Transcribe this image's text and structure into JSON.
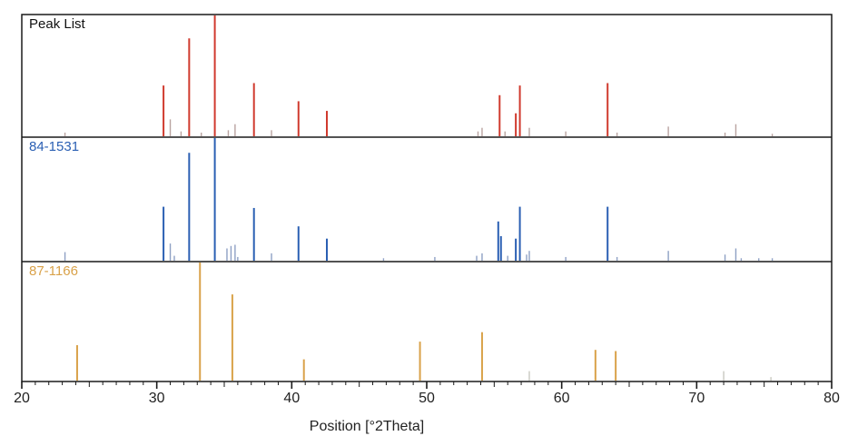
{
  "chart_data": {
    "type": "bar",
    "xlabel": "Position [°2Theta]",
    "xlim": [
      20,
      80
    ],
    "x_ticks": [
      20,
      30,
      40,
      50,
      60,
      70,
      80
    ],
    "ylim": [
      0,
      100
    ],
    "grid": false,
    "panels": [
      {
        "name": "Peak List",
        "color": "#d03a2e",
        "minor_color": "#b9a3a0",
        "peaks": [
          {
            "x": 23.2,
            "y": 3
          },
          {
            "x": 30.5,
            "y": 42
          },
          {
            "x": 31.0,
            "y": 14
          },
          {
            "x": 31.8,
            "y": 4
          },
          {
            "x": 32.4,
            "y": 81
          },
          {
            "x": 33.3,
            "y": 3
          },
          {
            "x": 34.3,
            "y": 100
          },
          {
            "x": 35.3,
            "y": 5
          },
          {
            "x": 35.8,
            "y": 10
          },
          {
            "x": 37.2,
            "y": 44
          },
          {
            "x": 38.5,
            "y": 5
          },
          {
            "x": 40.5,
            "y": 29
          },
          {
            "x": 42.6,
            "y": 21
          },
          {
            "x": 53.8,
            "y": 4
          },
          {
            "x": 54.1,
            "y": 7
          },
          {
            "x": 55.4,
            "y": 34
          },
          {
            "x": 55.8,
            "y": 4
          },
          {
            "x": 56.6,
            "y": 19
          },
          {
            "x": 56.9,
            "y": 42
          },
          {
            "x": 57.6,
            "y": 7
          },
          {
            "x": 60.3,
            "y": 4
          },
          {
            "x": 63.4,
            "y": 44
          },
          {
            "x": 64.1,
            "y": 3
          },
          {
            "x": 67.9,
            "y": 8
          },
          {
            "x": 72.1,
            "y": 3
          },
          {
            "x": 72.9,
            "y": 10
          },
          {
            "x": 75.6,
            "y": 2
          }
        ]
      },
      {
        "name": "84-1531",
        "color": "#2a5fb3",
        "minor_color": "#8ea0c4",
        "peaks": [
          {
            "x": 23.2,
            "y": 7
          },
          {
            "x": 30.5,
            "y": 44
          },
          {
            "x": 31.0,
            "y": 14
          },
          {
            "x": 31.3,
            "y": 4
          },
          {
            "x": 32.4,
            "y": 88
          },
          {
            "x": 34.3,
            "y": 100
          },
          {
            "x": 35.2,
            "y": 10
          },
          {
            "x": 35.5,
            "y": 12
          },
          {
            "x": 35.8,
            "y": 13
          },
          {
            "x": 36.0,
            "y": 3
          },
          {
            "x": 37.2,
            "y": 43
          },
          {
            "x": 38.5,
            "y": 6
          },
          {
            "x": 40.5,
            "y": 28
          },
          {
            "x": 42.6,
            "y": 18
          },
          {
            "x": 46.8,
            "y": 2
          },
          {
            "x": 50.6,
            "y": 3
          },
          {
            "x": 53.7,
            "y": 4
          },
          {
            "x": 54.1,
            "y": 6
          },
          {
            "x": 55.3,
            "y": 32
          },
          {
            "x": 55.5,
            "y": 20
          },
          {
            "x": 56.0,
            "y": 4
          },
          {
            "x": 56.6,
            "y": 18
          },
          {
            "x": 56.9,
            "y": 44
          },
          {
            "x": 57.4,
            "y": 5
          },
          {
            "x": 57.6,
            "y": 8
          },
          {
            "x": 60.3,
            "y": 3
          },
          {
            "x": 63.4,
            "y": 44
          },
          {
            "x": 64.1,
            "y": 3
          },
          {
            "x": 67.9,
            "y": 8
          },
          {
            "x": 72.1,
            "y": 5
          },
          {
            "x": 72.9,
            "y": 10
          },
          {
            "x": 73.3,
            "y": 2
          },
          {
            "x": 74.6,
            "y": 2
          },
          {
            "x": 75.6,
            "y": 2
          }
        ]
      },
      {
        "name": "87-1166",
        "color": "#d9a24a",
        "minor_color": "#c8c8c0",
        "peaks": [
          {
            "x": 24.1,
            "y": 30
          },
          {
            "x": 33.2,
            "y": 100
          },
          {
            "x": 35.6,
            "y": 73
          },
          {
            "x": 40.9,
            "y": 18
          },
          {
            "x": 49.5,
            "y": 33
          },
          {
            "x": 54.1,
            "y": 41
          },
          {
            "x": 57.6,
            "y": 8
          },
          {
            "x": 62.5,
            "y": 26
          },
          {
            "x": 64.0,
            "y": 25
          },
          {
            "x": 72.0,
            "y": 8
          },
          {
            "x": 75.5,
            "y": 3
          }
        ]
      }
    ]
  }
}
